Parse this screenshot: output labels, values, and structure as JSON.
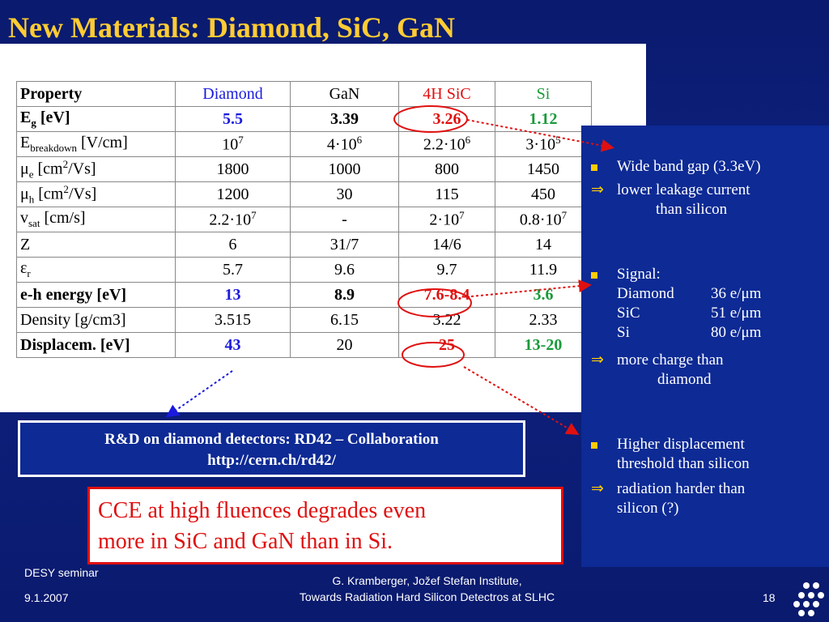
{
  "title": "New Materials: Diamond, SiC, GaN",
  "table": {
    "headers": [
      "Property",
      "Diamond",
      "GaN",
      "4H SiC",
      "Si"
    ],
    "rows": [
      {
        "property": "E",
        "property_sub": "g",
        "property_tail": " [eV]",
        "values": [
          "5.5",
          "3.39",
          "3.26",
          "1.12"
        ]
      },
      {
        "property": "E",
        "property_sub": "breakdown",
        "property_tail": " [V/cm]",
        "values": [
          "10",
          "4·10",
          "2.2·10",
          "3·10"
        ],
        "sups": [
          "7",
          "6",
          "6",
          "5"
        ]
      },
      {
        "property": "μ",
        "property_sub": "e",
        "property_tail": " [cm",
        "property_sup": "2",
        "property_end": "/Vs]",
        "values": [
          "1800",
          "1000",
          "800",
          "1450"
        ]
      },
      {
        "property": "μ",
        "property_sub": "h",
        "property_tail": " [cm",
        "property_sup": "2",
        "property_end": "/Vs]",
        "values": [
          "1200",
          "30",
          "115",
          "450"
        ]
      },
      {
        "property": " v",
        "property_sub": "sat",
        "property_tail": " [cm/s]",
        "values": [
          "2.2·10",
          "-",
          "2·10",
          "0.8·10"
        ],
        "sups": [
          "7",
          "",
          "7",
          "7"
        ]
      },
      {
        "property": " Z",
        "values": [
          "6",
          "31/7",
          "14/6",
          "14"
        ]
      },
      {
        "property": "ε",
        "property_sub": "r",
        "values": [
          "5.7",
          "9.6",
          "9.7",
          "11.9"
        ]
      },
      {
        "property": "e-h energy [eV]",
        "values": [
          "13",
          "8.9",
          "7.6-8.4",
          "3.6"
        ]
      },
      {
        "property": "Density [g/cm3]",
        "values": [
          "3.515",
          "6.15",
          "3.22",
          "2.33"
        ]
      },
      {
        "property": "Displacem. [eV]",
        "values": [
          "43",
          "20",
          "25",
          "13-20"
        ]
      }
    ]
  },
  "bullets": {
    "b1": "Wide band gap (3.3eV)",
    "b2_line1": "lower leakage current",
    "b2_line2": "than silicon",
    "signal_label": "Signal:",
    "signal_rows": [
      {
        "name": "Diamond",
        "value": "36 e/μm"
      },
      {
        "name": "SiC",
        "value": "51 e/μm"
      },
      {
        "name": "Si",
        "value": "80 e/μm"
      }
    ],
    "b4_line1": "more charge than",
    "b4_line2": "diamond",
    "b5_line1": "Higher displacement",
    "b5_line2": "threshold  than silicon",
    "b6_line1": "radiation harder than",
    "b6_line2": "silicon (?)",
    "arrow_symbol": "⇒"
  },
  "rd_box": {
    "line1": "R&D on diamond detectors: RD42 – Collaboration",
    "line2": "http://cern.ch/rd42/"
  },
  "cce_box": {
    "line1": "CCE at high fluences degrades even",
    "line2": "more in SiC and GaN than in Si."
  },
  "footer": {
    "left1": "DESY seminar",
    "left2": "9.1.2007",
    "center1": "G. Kramberger, Jožef Stefan Institute,",
    "center2": "Towards Radiation Hard Silicon Detectros at SLHC",
    "page": "18"
  },
  "colors": {
    "title": "#ffcc33",
    "diamond": "#1a1adf",
    "sic": "#e01010",
    "si": "#1a9a3a",
    "bullet": "#ffcc00"
  }
}
